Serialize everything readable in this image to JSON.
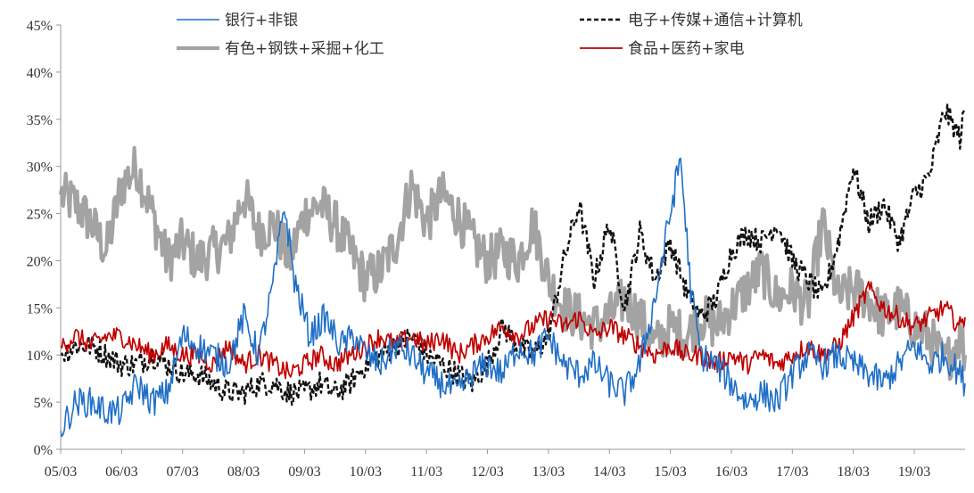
{
  "chart_data": {
    "type": "line",
    "title": "",
    "xlabel": "",
    "ylabel": "",
    "x_ticks": [
      "05/03",
      "06/03",
      "07/03",
      "08/03",
      "09/03",
      "10/03",
      "11/03",
      "12/03",
      "13/03",
      "14/03",
      "15/03",
      "16/03",
      "17/03",
      "18/03",
      "19/03"
    ],
    "y_ticks": [
      "0%",
      "5%",
      "10%",
      "15%",
      "20%",
      "25%",
      "30%",
      "35%",
      "40%",
      "45%"
    ],
    "ylim": [
      0,
      45
    ],
    "x_range": [
      "2005-03",
      "2020-01"
    ],
    "grid": false,
    "legend_position": "top",
    "series": [
      {
        "name": "银行+非银",
        "color": "#1f6fc6",
        "style": "solid",
        "width": 1.6,
        "points": [
          [
            "2005-03",
            2
          ],
          [
            "2005-06",
            5
          ],
          [
            "2005-09",
            5
          ],
          [
            "2005-12",
            4
          ],
          [
            "2006-03",
            4
          ],
          [
            "2006-06",
            7
          ],
          [
            "2006-09",
            5
          ],
          [
            "2006-12",
            6
          ],
          [
            "2007-03",
            12
          ],
          [
            "2007-06",
            11
          ],
          [
            "2007-09",
            10
          ],
          [
            "2007-12",
            9
          ],
          [
            "2008-03",
            14
          ],
          [
            "2008-06",
            10
          ],
          [
            "2008-09",
            18
          ],
          [
            "2008-11",
            26
          ],
          [
            "2009-01",
            18
          ],
          [
            "2009-04",
            12
          ],
          [
            "2009-07",
            14
          ],
          [
            "2009-10",
            11
          ],
          [
            "2010-01",
            12
          ],
          [
            "2010-03",
            10
          ],
          [
            "2010-06",
            9
          ],
          [
            "2010-09",
            11
          ],
          [
            "2010-12",
            10
          ],
          [
            "2011-03",
            8
          ],
          [
            "2011-06",
            7
          ],
          [
            "2011-09",
            6
          ],
          [
            "2011-12",
            8
          ],
          [
            "2012-03",
            9
          ],
          [
            "2012-06",
            8
          ],
          [
            "2012-09",
            11
          ],
          [
            "2012-12",
            10
          ],
          [
            "2013-03",
            12
          ],
          [
            "2013-06",
            9
          ],
          [
            "2013-09",
            8
          ],
          [
            "2013-12",
            9
          ],
          [
            "2014-03",
            7
          ],
          [
            "2014-06",
            6
          ],
          [
            "2014-09",
            9
          ],
          [
            "2014-12",
            16
          ],
          [
            "2015-03",
            25
          ],
          [
            "2015-05",
            31
          ],
          [
            "2015-07",
            17
          ],
          [
            "2015-09",
            10
          ],
          [
            "2015-12",
            9
          ],
          [
            "2016-03",
            7
          ],
          [
            "2016-06",
            5
          ],
          [
            "2016-09",
            6
          ],
          [
            "2016-12",
            5
          ],
          [
            "2017-03",
            8
          ],
          [
            "2017-06",
            10
          ],
          [
            "2017-09",
            9
          ],
          [
            "2017-12",
            10
          ],
          [
            "2018-03",
            9
          ],
          [
            "2018-06",
            8
          ],
          [
            "2018-09",
            7
          ],
          [
            "2018-12",
            9
          ],
          [
            "2019-03",
            11
          ],
          [
            "2019-06",
            9
          ],
          [
            "2019-09",
            10
          ],
          [
            "2019-12",
            8
          ],
          [
            "2020-01",
            7
          ]
        ]
      },
      {
        "name": "电子+传媒+通信+计算机",
        "color": "#111111",
        "style": "dashed",
        "width": 2.4,
        "points": [
          [
            "2005-03",
            10
          ],
          [
            "2005-06",
            11
          ],
          [
            "2005-09",
            11
          ],
          [
            "2005-12",
            10
          ],
          [
            "2006-03",
            9
          ],
          [
            "2006-06",
            9
          ],
          [
            "2006-09",
            10
          ],
          [
            "2006-12",
            9
          ],
          [
            "2007-03",
            8
          ],
          [
            "2007-06",
            8
          ],
          [
            "2007-09",
            7
          ],
          [
            "2007-12",
            6
          ],
          [
            "2008-03",
            6
          ],
          [
            "2008-06",
            7
          ],
          [
            "2008-09",
            7
          ],
          [
            "2008-12",
            6
          ],
          [
            "2009-03",
            6
          ],
          [
            "2009-06",
            7
          ],
          [
            "2009-09",
            6
          ],
          [
            "2009-12",
            7
          ],
          [
            "2010-03",
            9
          ],
          [
            "2010-06",
            10
          ],
          [
            "2010-09",
            11
          ],
          [
            "2010-12",
            12
          ],
          [
            "2011-03",
            10
          ],
          [
            "2011-06",
            9
          ],
          [
            "2011-09",
            8
          ],
          [
            "2011-12",
            7
          ],
          [
            "2012-03",
            9
          ],
          [
            "2012-06",
            13
          ],
          [
            "2012-09",
            11
          ],
          [
            "2012-12",
            10
          ],
          [
            "2013-03",
            12
          ],
          [
            "2013-06",
            20
          ],
          [
            "2013-09",
            26
          ],
          [
            "2013-12",
            18
          ],
          [
            "2014-03",
            24
          ],
          [
            "2014-06",
            15
          ],
          [
            "2014-09",
            23
          ],
          [
            "2014-12",
            18
          ],
          [
            "2015-03",
            22
          ],
          [
            "2015-06",
            17
          ],
          [
            "2015-09",
            14
          ],
          [
            "2015-12",
            16
          ],
          [
            "2016-03",
            21
          ],
          [
            "2016-06",
            23
          ],
          [
            "2016-09",
            22
          ],
          [
            "2016-12",
            24
          ],
          [
            "2017-03",
            20
          ],
          [
            "2017-06",
            18
          ],
          [
            "2017-09",
            16
          ],
          [
            "2017-12",
            22
          ],
          [
            "2018-03",
            30
          ],
          [
            "2018-06",
            24
          ],
          [
            "2018-09",
            26
          ],
          [
            "2018-12",
            22
          ],
          [
            "2019-03",
            27
          ],
          [
            "2019-06",
            29
          ],
          [
            "2019-09",
            36
          ],
          [
            "2019-12",
            33
          ],
          [
            "2020-01",
            36
          ]
        ]
      },
      {
        "name": "有色+钢铁+采掘+化工",
        "color": "#a3a3a3",
        "style": "solid",
        "width": 4.2,
        "points": [
          [
            "2005-03",
            27
          ],
          [
            "2005-06",
            26
          ],
          [
            "2005-09",
            24
          ],
          [
            "2005-12",
            21
          ],
          [
            "2006-03",
            28
          ],
          [
            "2006-06",
            30
          ],
          [
            "2006-09",
            25
          ],
          [
            "2006-12",
            20
          ],
          [
            "2007-03",
            22
          ],
          [
            "2007-06",
            20
          ],
          [
            "2007-09",
            21
          ],
          [
            "2007-12",
            22
          ],
          [
            "2008-03",
            27
          ],
          [
            "2008-06",
            23
          ],
          [
            "2008-09",
            24
          ],
          [
            "2008-12",
            20
          ],
          [
            "2009-03",
            25
          ],
          [
            "2009-06",
            26
          ],
          [
            "2009-09",
            24
          ],
          [
            "2009-12",
            21
          ],
          [
            "2010-03",
            18
          ],
          [
            "2010-06",
            19
          ],
          [
            "2010-09",
            22
          ],
          [
            "2010-12",
            28
          ],
          [
            "2011-03",
            24
          ],
          [
            "2011-06",
            27
          ],
          [
            "2011-09",
            25
          ],
          [
            "2011-12",
            22
          ],
          [
            "2012-03",
            20
          ],
          [
            "2012-06",
            21
          ],
          [
            "2012-09",
            20
          ],
          [
            "2012-12",
            24
          ],
          [
            "2013-03",
            18
          ],
          [
            "2013-06",
            15
          ],
          [
            "2013-09",
            14
          ],
          [
            "2013-12",
            13
          ],
          [
            "2014-03",
            14
          ],
          [
            "2014-06",
            16
          ],
          [
            "2014-09",
            14
          ],
          [
            "2014-12",
            11
          ],
          [
            "2015-03",
            13
          ],
          [
            "2015-06",
            12
          ],
          [
            "2015-09",
            14
          ],
          [
            "2015-12",
            13
          ],
          [
            "2016-03",
            15
          ],
          [
            "2016-06",
            17
          ],
          [
            "2016-09",
            19
          ],
          [
            "2016-12",
            16
          ],
          [
            "2017-03",
            17
          ],
          [
            "2017-06",
            15
          ],
          [
            "2017-09",
            24
          ],
          [
            "2017-12",
            16
          ],
          [
            "2018-03",
            17
          ],
          [
            "2018-06",
            16
          ],
          [
            "2018-09",
            14
          ],
          [
            "2018-12",
            15
          ],
          [
            "2019-03",
            13
          ],
          [
            "2019-06",
            12
          ],
          [
            "2019-09",
            9
          ],
          [
            "2019-12",
            12
          ],
          [
            "2020-01",
            10
          ]
        ]
      },
      {
        "name": "食品+医药+家电",
        "color": "#c00000",
        "style": "solid",
        "width": 1.7,
        "points": [
          [
            "2005-03",
            11
          ],
          [
            "2005-06",
            12
          ],
          [
            "2005-09",
            11
          ],
          [
            "2005-12",
            12
          ],
          [
            "2006-03",
            12
          ],
          [
            "2006-06",
            11
          ],
          [
            "2006-09",
            10
          ],
          [
            "2006-12",
            11
          ],
          [
            "2007-03",
            10
          ],
          [
            "2007-06",
            10
          ],
          [
            "2007-09",
            9
          ],
          [
            "2007-12",
            11
          ],
          [
            "2008-03",
            9
          ],
          [
            "2008-06",
            10
          ],
          [
            "2008-09",
            9
          ],
          [
            "2008-12",
            8
          ],
          [
            "2009-03",
            9
          ],
          [
            "2009-06",
            10
          ],
          [
            "2009-09",
            9
          ],
          [
            "2009-12",
            10
          ],
          [
            "2010-03",
            11
          ],
          [
            "2010-06",
            12
          ],
          [
            "2010-09",
            11
          ],
          [
            "2010-12",
            12
          ],
          [
            "2011-03",
            11
          ],
          [
            "2011-06",
            12
          ],
          [
            "2011-09",
            10
          ],
          [
            "2011-12",
            11
          ],
          [
            "2012-03",
            12
          ],
          [
            "2012-06",
            13
          ],
          [
            "2012-09",
            12
          ],
          [
            "2012-12",
            13
          ],
          [
            "2013-03",
            14
          ],
          [
            "2013-06",
            13
          ],
          [
            "2013-09",
            14
          ],
          [
            "2013-12",
            12
          ],
          [
            "2014-03",
            13
          ],
          [
            "2014-06",
            12
          ],
          [
            "2014-09",
            11
          ],
          [
            "2014-12",
            10
          ],
          [
            "2015-03",
            11
          ],
          [
            "2015-06",
            10
          ],
          [
            "2015-09",
            10
          ],
          [
            "2015-12",
            9
          ],
          [
            "2016-03",
            10
          ],
          [
            "2016-06",
            9
          ],
          [
            "2016-09",
            10
          ],
          [
            "2016-12",
            9
          ],
          [
            "2017-03",
            10
          ],
          [
            "2017-06",
            11
          ],
          [
            "2017-09",
            10
          ],
          [
            "2017-12",
            11
          ],
          [
            "2018-03",
            14
          ],
          [
            "2018-06",
            17
          ],
          [
            "2018-09",
            15
          ],
          [
            "2018-12",
            14
          ],
          [
            "2019-03",
            13
          ],
          [
            "2019-06",
            14
          ],
          [
            "2019-09",
            15
          ],
          [
            "2019-12",
            13
          ],
          [
            "2020-01",
            14
          ]
        ]
      }
    ]
  }
}
